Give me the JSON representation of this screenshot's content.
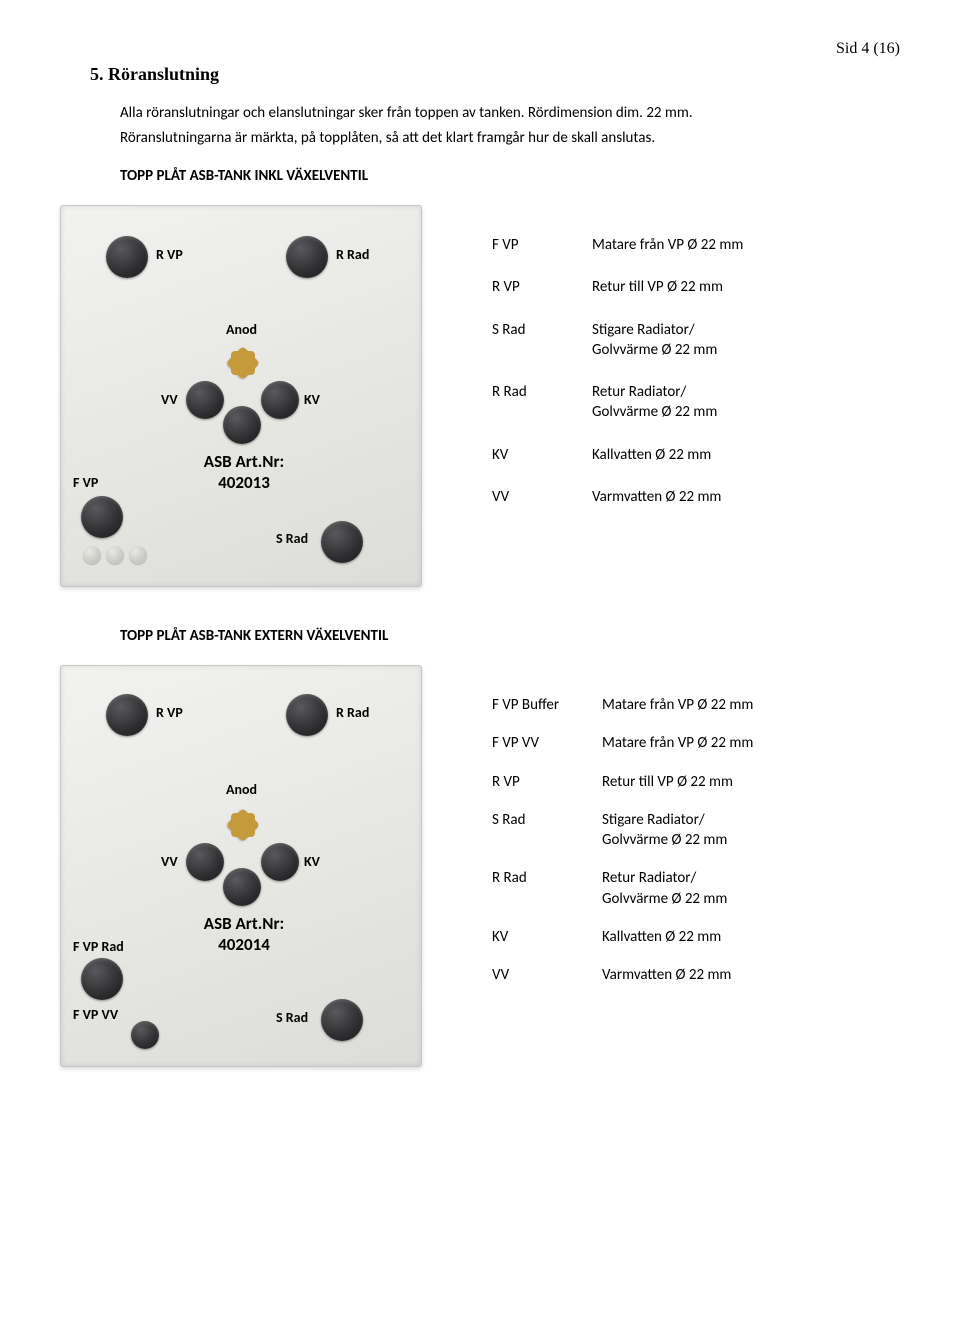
{
  "page_number": "Sid 4 (16)",
  "heading": "5.  Röranslutning",
  "intro_line1": "Alla röranslutningar och elanslutningar sker från toppen av tanken. Rördimension dim. 22 mm.",
  "intro_line2": "Röranslutningarna är märkta, på topplåten, så att det klart framgår hur de skall anslutas.",
  "section1": {
    "title": "TOPP PLÅT ASB-TANK INKL VÄXELVENTIL",
    "plate": {
      "labels": {
        "rvp": "R VP",
        "rrad": "R Rad",
        "anod": "Anod",
        "vv": "VV",
        "kv": "KV",
        "fvp": "F VP",
        "srad": "S Rad",
        "art_line1": "ASB Art.Nr:",
        "art_line2": "402013"
      }
    },
    "legend": [
      {
        "key": "F VP",
        "val": "Matare från VP Ø 22 mm"
      },
      {
        "key": "R VP",
        "val": "Retur till VP Ø 22 mm"
      },
      {
        "key": "S Rad",
        "val": "Stigare Radiator/\nGolvvärme Ø 22 mm"
      },
      {
        "key": "R Rad",
        "val": "Retur Radiator/\nGolvvärme Ø 22 mm"
      },
      {
        "key": "KV",
        "val": "Kallvatten Ø 22 mm"
      },
      {
        "key": "VV",
        "val": "Varmvatten Ø 22 mm"
      }
    ]
  },
  "section2": {
    "title": "TOPP PLÅT ASB-TANK EXTERN VÄXELVENTIL",
    "plate": {
      "labels": {
        "rvp": "R VP",
        "rrad": "R Rad",
        "anod": "Anod",
        "vv": "VV",
        "kv": "KV",
        "fvprad": "F VP Rad",
        "fvpvv": "F VP VV",
        "srad": "S Rad",
        "art_line1": "ASB Art.Nr:",
        "art_line2": "402014"
      }
    },
    "legend": [
      {
        "key": "F VP  Buffer",
        "val": "Matare från VP Ø 22 mm"
      },
      {
        "key": "F VP VV",
        "val": "Matare från VP Ø 22 mm"
      },
      {
        "key": "R VP",
        "val": "Retur till VP Ø 22 mm"
      },
      {
        "key": "S Rad",
        "val": "Stigare Radiator/\nGolvvärme Ø 22 mm"
      },
      {
        "key": "R Rad",
        "val": "Retur Radiator/\nGolvvärme Ø 22 mm"
      },
      {
        "key": "KV",
        "val": "Kallvatten Ø 22 mm"
      },
      {
        "key": "VV",
        "val": "Varmvatten Ø 22 mm"
      }
    ]
  }
}
